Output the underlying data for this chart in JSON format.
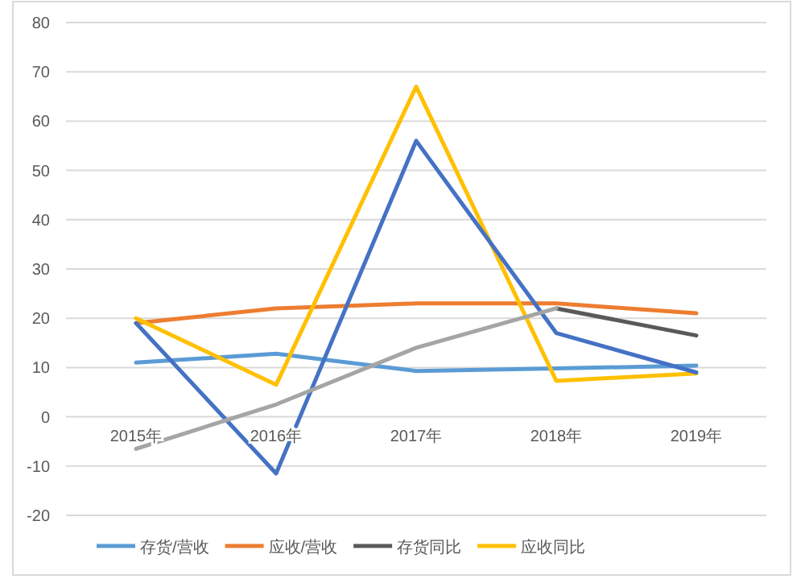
{
  "chart_data": {
    "type": "line",
    "categories": [
      "2015年",
      "2016年",
      "2017年",
      "2018年",
      "2019年"
    ],
    "series": [
      {
        "name": "存货/营收",
        "color": "#5b9bd5",
        "values": [
          11,
          12.8,
          9.3,
          9.8,
          10.4
        ]
      },
      {
        "name": "应收/营收",
        "color": "#ed7d31",
        "values": [
          19,
          22,
          23,
          23,
          21
        ]
      },
      {
        "name": "存货同比",
        "color": "#595959",
        "values": [
          null,
          null,
          null,
          22,
          16.5
        ]
      },
      {
        "name": "应收同比",
        "color": "#ffc000",
        "values": [
          20,
          6.5,
          67,
          7.3,
          8.8
        ]
      },
      {
        "color": "#4472c4",
        "values": [
          19,
          -11.5,
          56,
          17,
          9
        ]
      },
      {
        "color": "#a5a5a5",
        "values": [
          -6.5,
          2.5,
          14,
          22,
          null
        ]
      }
    ],
    "ylim": [
      -20,
      80
    ],
    "yticks": [
      -20,
      -10,
      0,
      10,
      20,
      30,
      40,
      50,
      60,
      70,
      80
    ],
    "grid": "y",
    "legend": "bottom",
    "marker": "none",
    "line_style": "solid"
  }
}
